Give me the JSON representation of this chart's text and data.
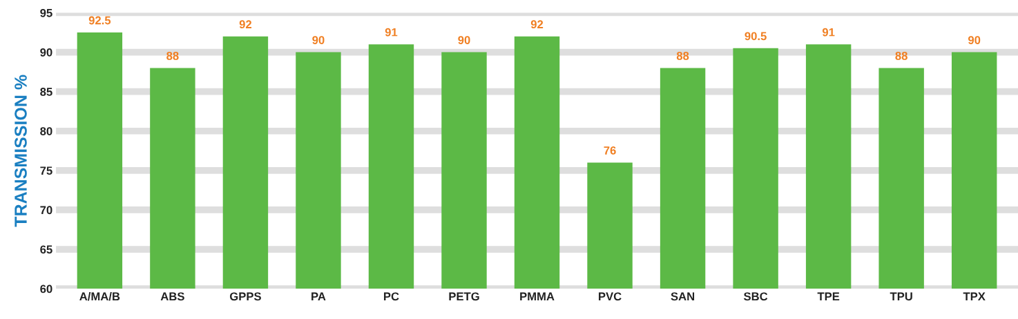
{
  "chart_data": {
    "type": "bar",
    "ylabel": "TRANSMISSION %",
    "categories": [
      "A/MA/B",
      "ABS",
      "GPPS",
      "PA",
      "PC",
      "PETG",
      "PMMA",
      "PVC",
      "SAN",
      "SBC",
      "TPE",
      "TPU",
      "TPX"
    ],
    "values": [
      92.5,
      88,
      92,
      90,
      91,
      90,
      92,
      76,
      88,
      90.5,
      91,
      88,
      90
    ],
    "color": "#5cb946",
    "ylim": [
      60,
      95
    ],
    "yticks": [
      60,
      65,
      70,
      75,
      80,
      85,
      90,
      95
    ],
    "grid": "y",
    "data_labels": true
  }
}
